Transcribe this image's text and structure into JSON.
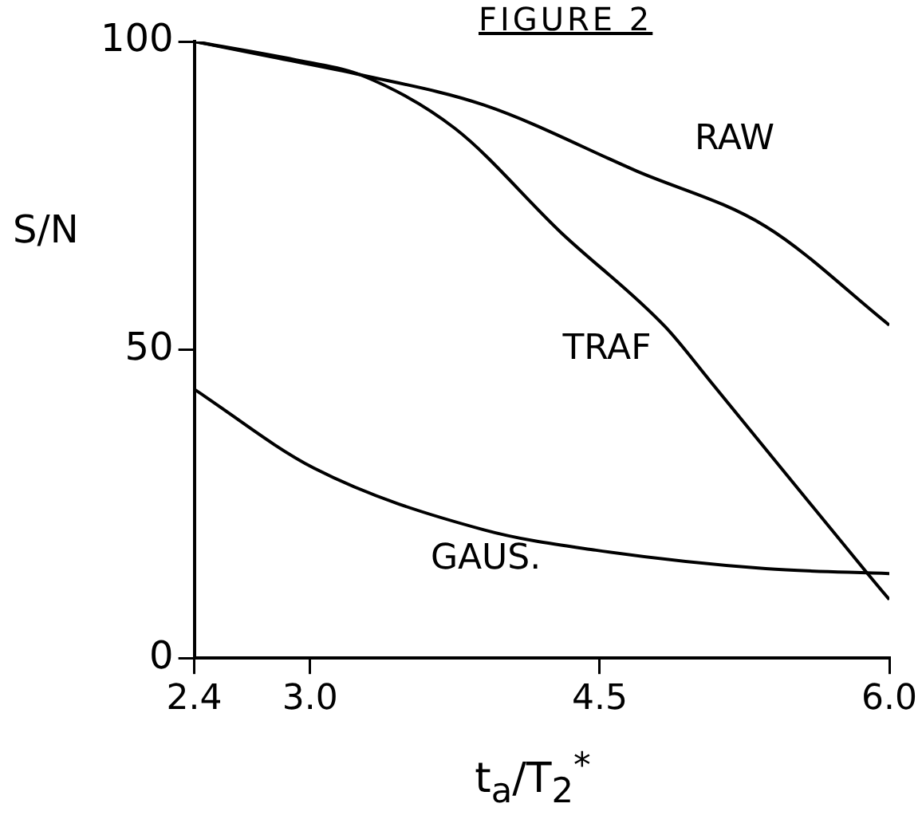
{
  "chart_data": {
    "type": "line",
    "title": "FIGURE 2",
    "xlabel": "t$_{a}$/T$_{2}$$^{*}$",
    "ylabel": "S/N",
    "xlim": [
      2.4,
      6.0
    ],
    "xticks": [
      2.4,
      {
        "value": 3,
        "label": "3.0"
      },
      4.5,
      {
        "value": 6,
        "label": "6.0"
      }
    ],
    "ylim": [
      0,
      100
    ],
    "yticks": [
      0,
      50,
      100
    ],
    "grid": false,
    "legend": false,
    "marker": "none",
    "line_style": "solid",
    "series": [
      {
        "name": "RAW",
        "color": "#000000",
        "x": [
          2.4,
          2.8,
          3.26,
          3.9,
          4.69,
          5.36,
          6.0
        ],
        "values": [
          100,
          97.5,
          94.6,
          89.7,
          79,
          70,
          54
        ]
      },
      {
        "name": "TRAF",
        "color": "#000000",
        "x": [
          2.4,
          2.96,
          3.26,
          3.75,
          4.3,
          4.84,
          5.07,
          5.89,
          6.0
        ],
        "values": [
          100,
          96.8,
          94.6,
          85.9,
          69,
          53.7,
          45,
          13.6,
          9.5
        ]
      },
      {
        "name": "GAUS.",
        "color": "#000000",
        "x": [
          2.4,
          3.02,
          3.9,
          4.48,
          5.36,
          6.0
        ],
        "values": [
          43.6,
          30.8,
          20.8,
          17.5,
          14.5,
          13.7
        ]
      }
    ]
  }
}
